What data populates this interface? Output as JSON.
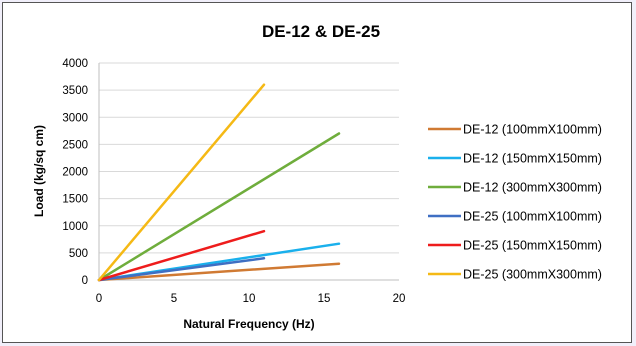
{
  "chart_data": {
    "type": "line",
    "title": "DE-12 & DE-25",
    "xlabel": "Natural Frequency (Hz)",
    "ylabel": "Load (kg/sq cm)",
    "xlim": [
      0,
      20
    ],
    "ylim": [
      0,
      4000
    ],
    "xticks": [
      0,
      5,
      10,
      15,
      20
    ],
    "yticks": [
      0,
      500,
      1000,
      1500,
      2000,
      2500,
      3000,
      3500,
      4000
    ],
    "grid": "horizontal",
    "legend_position": "right",
    "series": [
      {
        "name": "DE-12 (100mmX100mm)",
        "color": "#d07a33",
        "points": [
          [
            0,
            0
          ],
          [
            16,
            300
          ]
        ]
      },
      {
        "name": "DE-12 (150mmX150mm)",
        "color": "#1ab0ec",
        "points": [
          [
            0,
            0
          ],
          [
            16,
            670
          ]
        ]
      },
      {
        "name": "DE-12 (300mmX300mm)",
        "color": "#6fad3c",
        "points": [
          [
            0,
            0
          ],
          [
            16,
            2700
          ]
        ]
      },
      {
        "name": "DE-25 (100mmX100mm)",
        "color": "#3f6fc3",
        "points": [
          [
            0,
            0
          ],
          [
            11,
            400
          ]
        ]
      },
      {
        "name": "DE-25 (150mmX150mm)",
        "color": "#ee1c1c",
        "points": [
          [
            0,
            0
          ],
          [
            11,
            900
          ]
        ]
      },
      {
        "name": "DE-25 (300mmX300mm)",
        "color": "#f5b915",
        "points": [
          [
            0,
            0
          ],
          [
            11,
            3600
          ]
        ]
      }
    ]
  }
}
